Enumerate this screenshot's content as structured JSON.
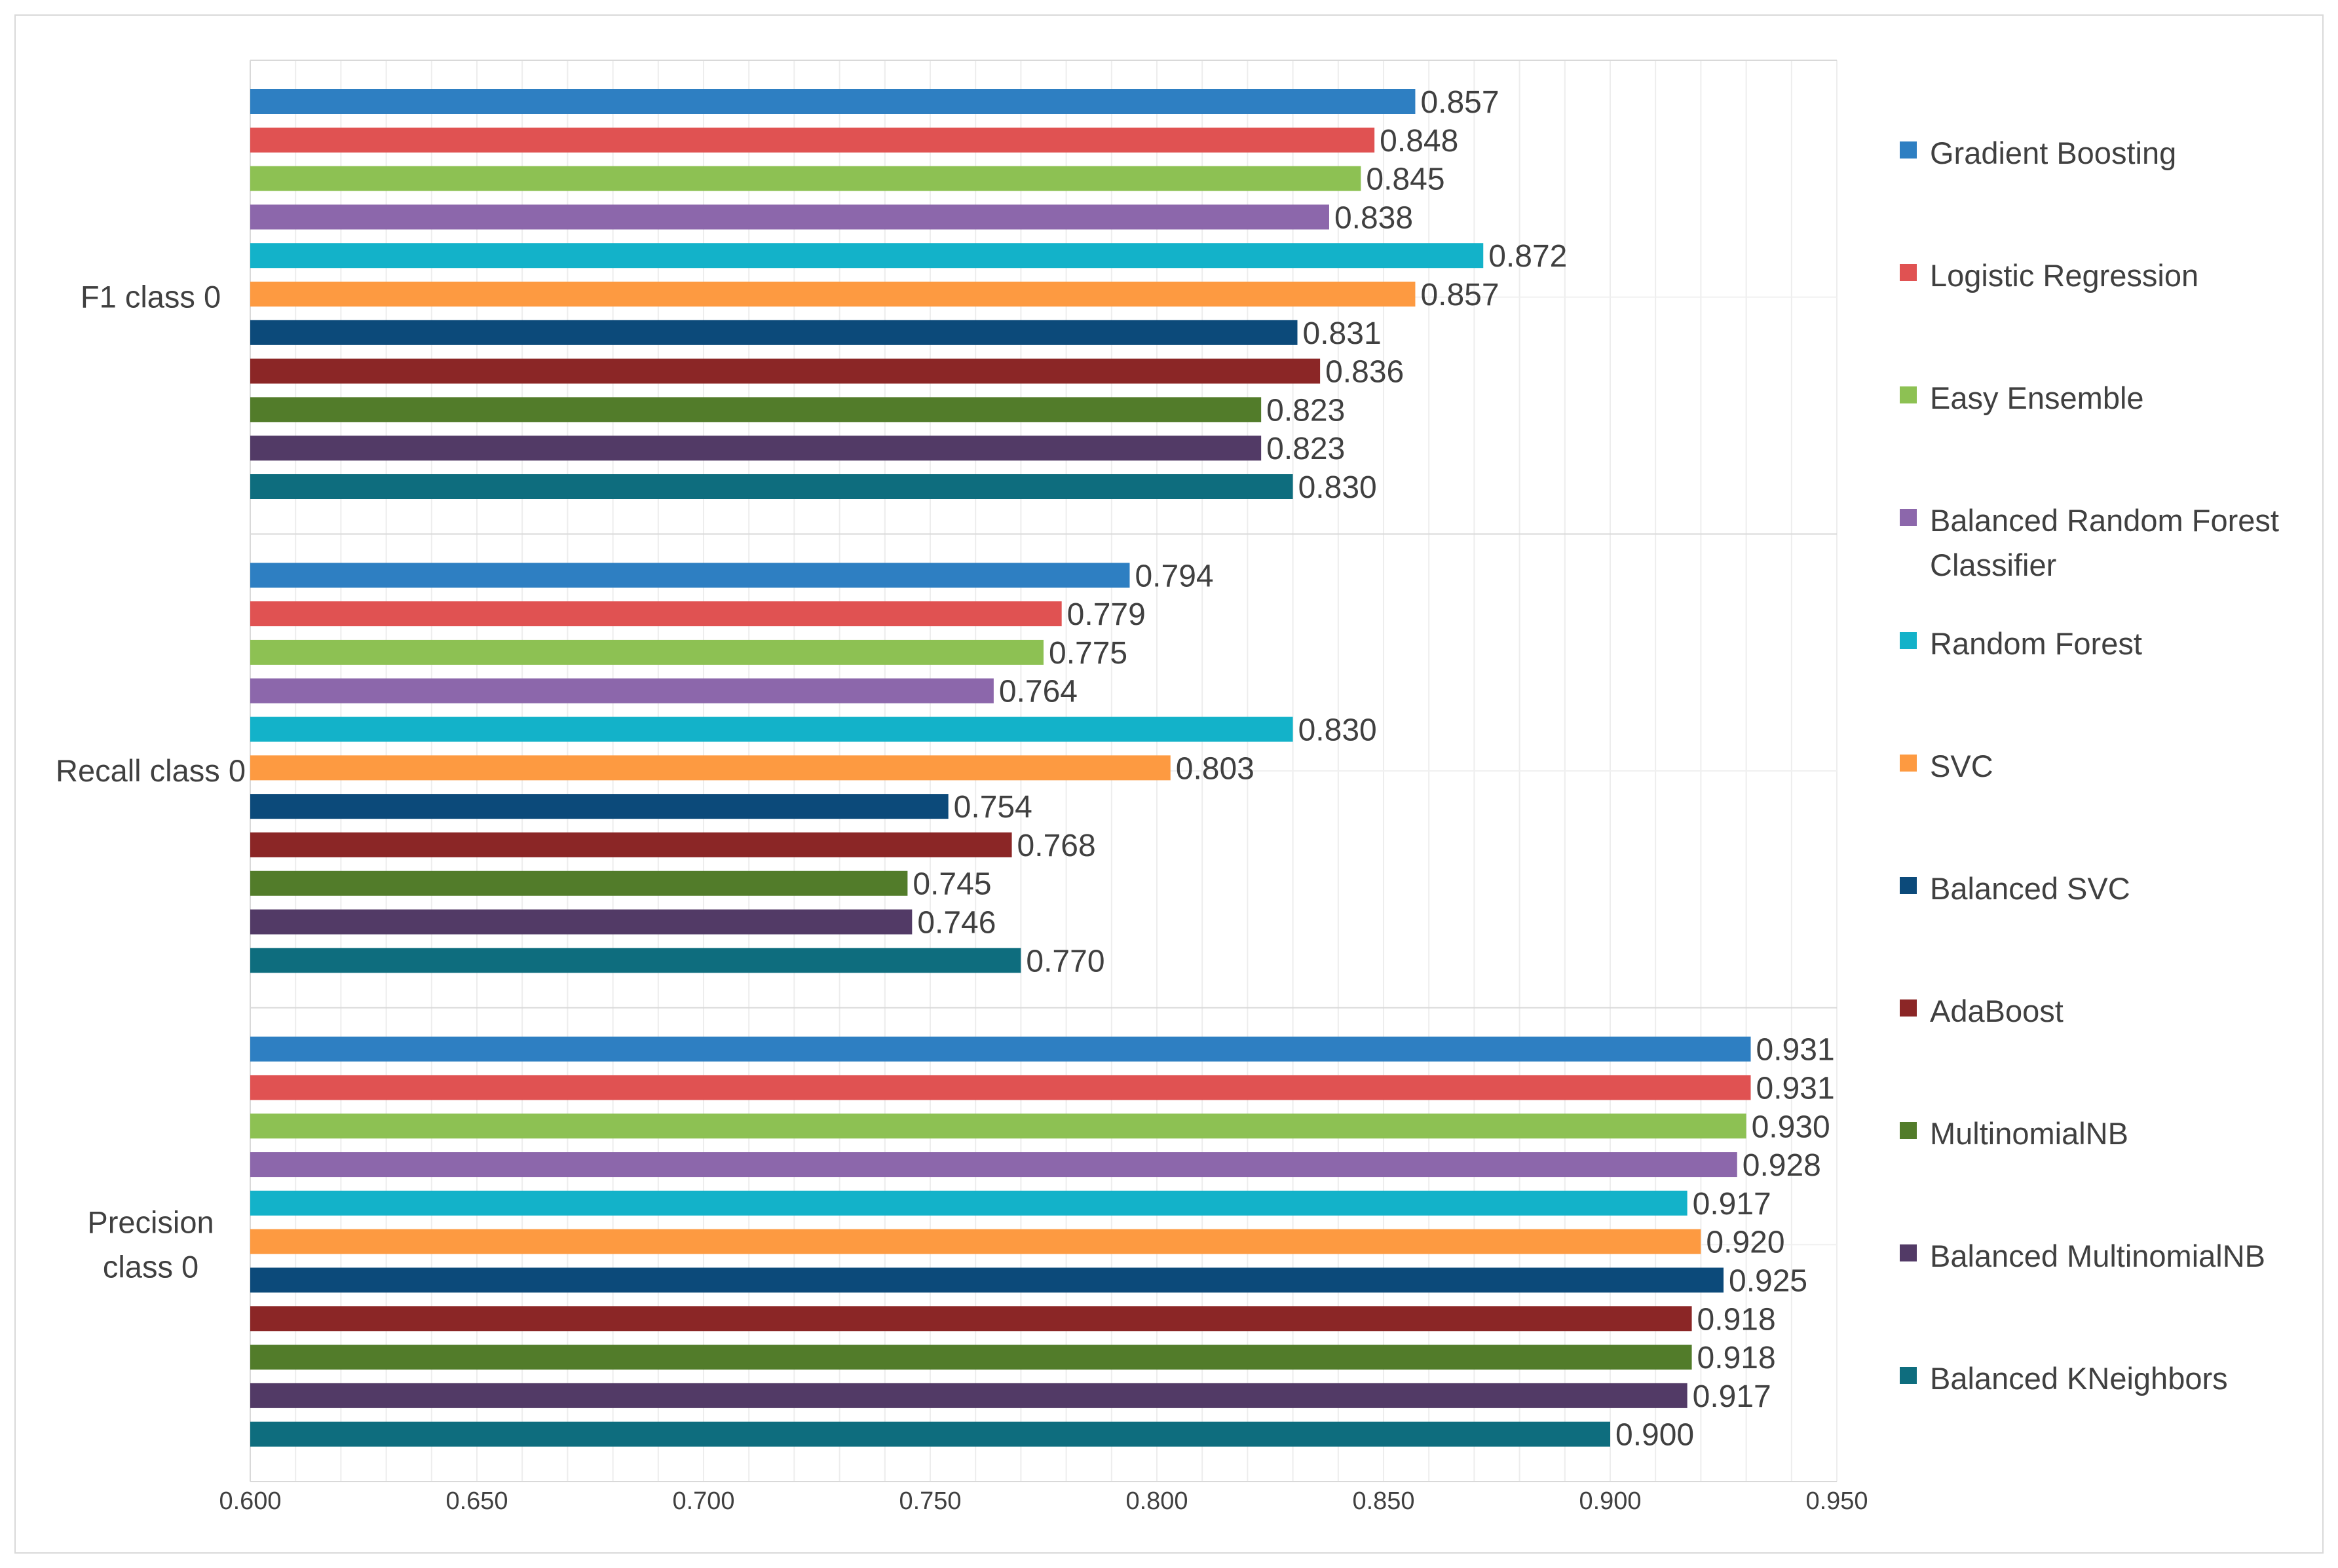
{
  "chart_data": {
    "type": "bar",
    "orientation": "horizontal",
    "title": "",
    "xlabel": "",
    "ylabel": "",
    "xlim": [
      0.6,
      0.95
    ],
    "xticks": [
      "0.600",
      "0.650",
      "0.700",
      "0.750",
      "0.800",
      "0.850",
      "0.900",
      "0.950"
    ],
    "grid": true,
    "legend_position": "right",
    "categories": [
      "F1 class 0",
      "Recall class 0",
      "Precision class 0"
    ],
    "series": [
      {
        "name": "Gradient Boosting",
        "color": "#2e7fc2",
        "values": [
          0.857,
          0.794,
          0.931
        ]
      },
      {
        "name": "Logistic Regression",
        "color": "#e05252",
        "values": [
          0.848,
          0.779,
          0.931
        ]
      },
      {
        "name": "Easy Ensemble",
        "color": "#8dc153",
        "values": [
          0.845,
          0.775,
          0.93
        ]
      },
      {
        "name": "Balanced Random Forest Classifier",
        "color": "#8c67ab",
        "values": [
          0.838,
          0.764,
          0.928
        ]
      },
      {
        "name": "Random Forest",
        "color": "#13b2c9",
        "values": [
          0.872,
          0.83,
          0.917
        ]
      },
      {
        "name": "SVC",
        "color": "#fd9a41",
        "values": [
          0.857,
          0.803,
          0.92
        ]
      },
      {
        "name": "Balanced SVC",
        "color": "#0c4a7a",
        "values": [
          0.831,
          0.754,
          0.925
        ]
      },
      {
        "name": "AdaBoost",
        "color": "#8b2626",
        "values": [
          0.836,
          0.768,
          0.918
        ]
      },
      {
        "name": "MultinomialNB",
        "color": "#527c2a",
        "values": [
          0.823,
          0.745,
          0.918
        ]
      },
      {
        "name": "Balanced MultinomialNB",
        "color": "#523a66",
        "values": [
          0.823,
          0.746,
          0.917
        ]
      },
      {
        "name": "Balanced KNeighbors",
        "color": "#0e6d7e",
        "values": [
          0.83,
          0.77,
          0.9
        ]
      }
    ]
  }
}
